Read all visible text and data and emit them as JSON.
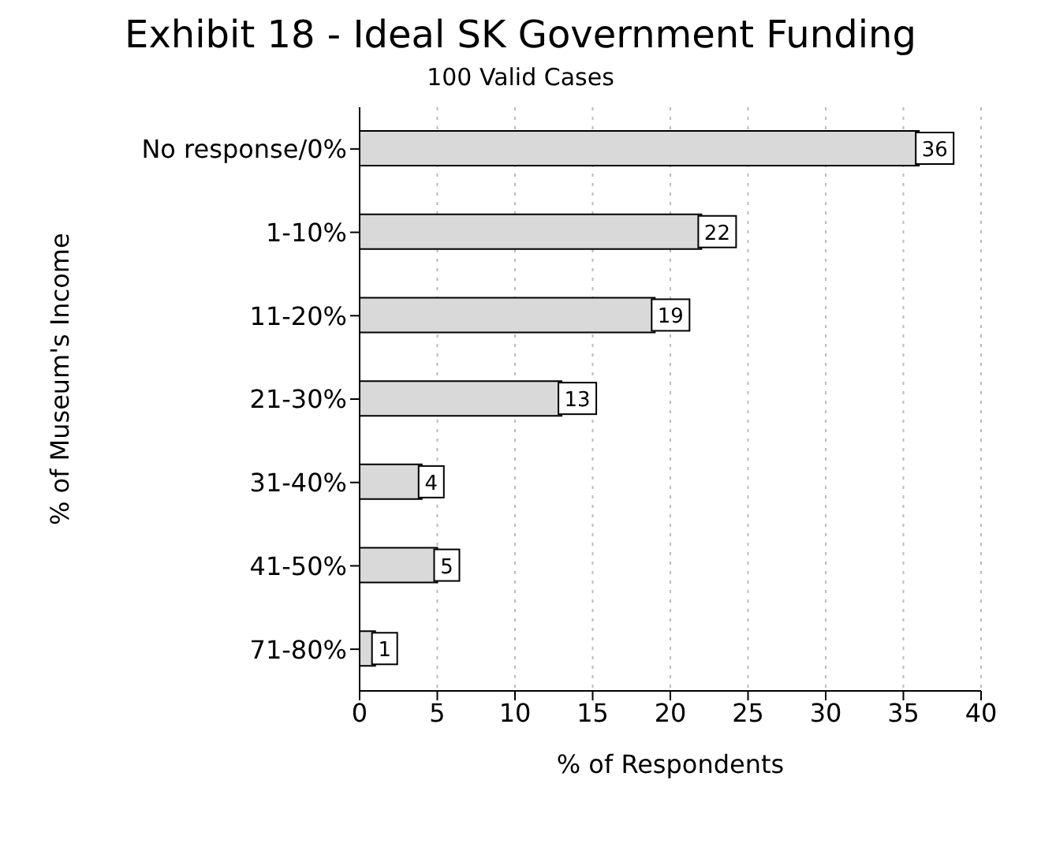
{
  "chart_data": {
    "type": "bar",
    "orientation": "horizontal",
    "title": "Exhibit 18 - Ideal SK Government Funding",
    "subtitle": "100 Valid Cases",
    "xlabel": "% of Respondents",
    "ylabel": "% of Museum's Income",
    "categories": [
      "No response/0%",
      "1-10%",
      "11-20%",
      "21-30%",
      "31-40%",
      "41-50%",
      "71-80%"
    ],
    "values": [
      36,
      22,
      19,
      13,
      4,
      5,
      1
    ],
    "color": "#d9d9d9",
    "xlim": [
      0,
      40
    ],
    "xticks": [
      0,
      5,
      10,
      15,
      20,
      25,
      30,
      35,
      40
    ],
    "grid": "x",
    "data_labels": true
  }
}
